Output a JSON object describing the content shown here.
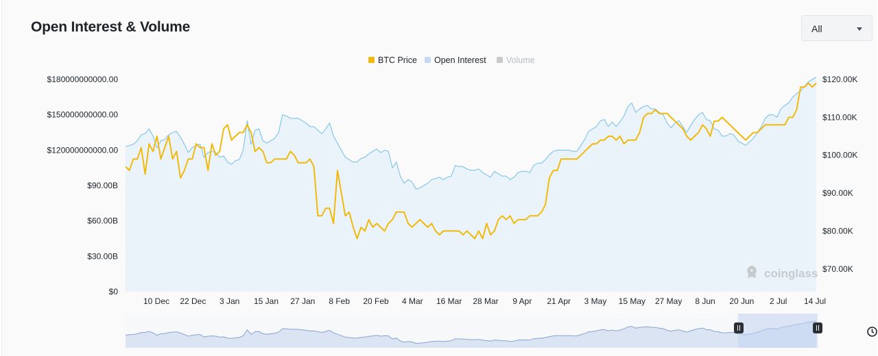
{
  "header": {
    "title": "Open Interest & Volume",
    "range_value": "All"
  },
  "watermark": {
    "text": "coinglass"
  },
  "colors": {
    "btc": "#f0b90b",
    "oi_line": "#7cc3ea",
    "oi_fill": "#eaf3fa",
    "volume": "#c9c9c9",
    "nav_fill": "#c3d4ee",
    "nav_line": "#86a3d2"
  },
  "chart_data": {
    "type": "line",
    "legend_position": "top-center",
    "grid": false,
    "x_labels": [
      "10 Dec",
      "22 Dec",
      "3 Jan",
      "15 Jan",
      "27 Jan",
      "8 Feb",
      "20 Feb",
      "4 Mar",
      "16 Mar",
      "28 Mar",
      "9 Apr",
      "21 Apr",
      "3 May",
      "15 May",
      "27 May",
      "8 Jun",
      "20 Jun",
      "2 Jul",
      "14 Jul"
    ],
    "y_left": {
      "ticks": [
        0,
        30,
        60,
        90,
        120,
        150,
        180
      ],
      "tick_labels": [
        "$0",
        "$30.00B",
        "$60.00B",
        "$90.00B",
        "$120000000000.00",
        "$150000000000.00",
        "$180000000000.00"
      ],
      "range": [
        0,
        180
      ],
      "unit": "B USD"
    },
    "y_right": {
      "ticks": [
        70,
        80,
        90,
        100,
        110,
        120
      ],
      "tick_labels": [
        "$70.00K",
        "$80.00K",
        "$90.00K",
        "$100.00K",
        "$110.00K",
        "$120.00K"
      ],
      "range": [
        64,
        120
      ],
      "unit": "K USD"
    },
    "series": [
      {
        "name": "BTC Price",
        "axis": "right",
        "values": [
          97,
          96,
          99,
          99,
          102,
          95,
          103,
          101,
          105,
          99,
          102,
          105,
          99,
          101,
          94,
          96,
          99,
          99,
          103,
          102,
          102,
          96,
          103,
          100,
          101,
          107,
          108,
          104,
          105,
          106,
          106,
          108,
          106,
          101,
          102,
          101,
          98,
          98,
          99,
          99,
          99,
          99,
          101,
          100,
          98,
          98,
          98,
          99,
          97,
          84,
          84,
          86,
          86,
          82,
          96,
          90,
          84,
          85,
          81,
          78,
          81,
          80,
          83,
          81,
          82,
          81,
          80,
          82,
          83,
          85,
          85,
          85,
          82,
          81,
          82,
          83,
          82,
          81,
          82,
          80,
          79,
          80,
          80,
          80,
          80,
          80,
          79,
          80,
          79,
          78,
          80,
          78,
          82,
          79,
          80,
          83,
          84,
          83,
          84,
          82,
          83,
          83,
          83,
          84,
          84,
          84,
          85,
          87,
          94,
          96,
          96,
          99,
          99,
          99,
          99,
          99,
          100,
          101,
          102,
          103,
          103,
          104,
          104,
          105,
          105,
          104,
          105,
          103,
          104,
          104,
          104,
          106,
          110,
          111,
          111,
          112,
          111,
          111,
          111,
          110,
          109,
          108,
          107,
          105,
          104,
          105,
          106,
          108,
          107,
          105,
          109,
          109,
          110,
          109,
          108,
          107,
          106,
          105,
          104,
          105,
          106,
          106,
          107,
          108,
          108,
          108,
          108,
          108,
          108,
          110,
          110,
          112,
          118,
          118,
          119,
          118,
          119
        ]
      },
      {
        "name": "Open Interest",
        "axis": "left",
        "values": [
          123,
          124,
          125,
          128,
          133,
          134,
          138,
          132,
          122,
          128,
          129,
          133,
          135,
          136,
          131,
          125,
          118,
          122,
          124,
          125,
          114,
          118,
          119,
          118,
          114,
          115,
          110,
          108,
          111,
          112,
          120,
          145,
          125,
          137,
          138,
          128,
          126,
          128,
          130,
          135,
          150,
          149,
          147,
          147,
          147,
          145,
          143,
          140,
          140,
          137,
          134,
          138,
          143,
          132,
          126,
          120,
          114,
          112,
          110,
          110,
          113,
          114,
          117,
          119,
          121,
          118,
          120,
          119,
          105,
          110,
          98,
          92,
          95,
          93,
          87,
          88,
          90,
          92,
          95,
          96,
          97,
          95,
          97,
          98,
          107,
          106,
          106,
          104,
          103,
          103,
          104,
          101,
          99,
          97,
          102,
          100,
          98,
          98,
          95,
          97,
          101,
          102,
          102,
          101,
          107,
          109,
          109,
          112,
          116,
          119,
          120,
          120,
          120,
          120,
          119,
          119,
          124,
          129,
          136,
          138,
          140,
          145,
          146,
          140,
          144,
          140,
          144,
          149,
          157,
          160,
          152,
          155,
          157,
          158,
          155,
          155,
          152,
          150,
          143,
          139,
          143,
          145,
          140,
          135,
          141,
          146,
          150,
          152,
          146,
          145,
          138,
          137,
          132,
          132,
          134,
          133,
          128,
          126,
          124,
          127,
          130,
          135,
          140,
          147,
          150,
          150,
          148,
          155,
          158,
          160,
          165,
          168,
          170,
          174,
          178,
          180,
          182
        ]
      },
      {
        "name": "Volume",
        "axis": "left",
        "values": []
      }
    ]
  }
}
